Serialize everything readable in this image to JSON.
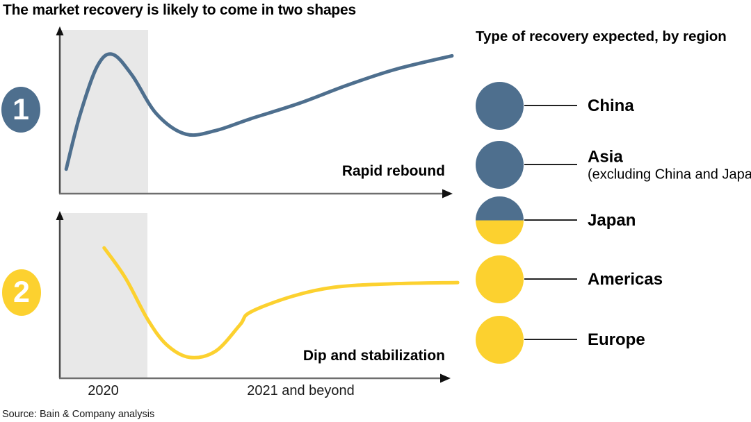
{
  "title": "The market recovery is likely to come in two shapes",
  "source": "Source: Bain & Company analysis",
  "colors": {
    "blue": "#4e6f8e",
    "yellow": "#fcd12f",
    "shaded_band": "#e8e8e8",
    "y_axis": "#4a4a4a",
    "x_axis": "#6e6e6e",
    "arrowhead": "#111111",
    "connector_line": "#222222"
  },
  "x_axis_labels": [
    "2020",
    "2021 and beyond"
  ],
  "chart_data": [
    {
      "type": "line",
      "number": "1",
      "label": "Rapid rebound",
      "series_color": "#4e6f8e",
      "shaded_band_covers": "2020",
      "axes": "unlabeled qualitative axes with arrowheads",
      "curve_points_normalized": [
        [
          0.018,
          0.149
        ],
        [
          0.053,
          0.477
        ],
        [
          0.097,
          0.774
        ],
        [
          0.136,
          0.847
        ],
        [
          0.186,
          0.719
        ],
        [
          0.248,
          0.485
        ],
        [
          0.322,
          0.362
        ],
        [
          0.398,
          0.383
        ],
        [
          0.487,
          0.455
        ],
        [
          0.611,
          0.549
        ],
        [
          0.734,
          0.66
        ],
        [
          0.858,
          0.757
        ],
        [
          1.0,
          0.838
        ]
      ]
    },
    {
      "type": "line",
      "number": "2",
      "label": "Dip and stabilization",
      "series_color": "#fcd12f",
      "shaded_band_covers": "2020",
      "axes": "unlabeled qualitative axes with arrowheads",
      "curve_points_normalized": [
        [
          0.115,
          0.793
        ],
        [
          0.169,
          0.612
        ],
        [
          0.226,
          0.359
        ],
        [
          0.275,
          0.203
        ],
        [
          0.334,
          0.127
        ],
        [
          0.4,
          0.165
        ],
        [
          0.462,
          0.325
        ],
        [
          0.488,
          0.401
        ],
        [
          0.595,
          0.498
        ],
        [
          0.702,
          0.553
        ],
        [
          0.844,
          0.574
        ],
        [
          1.018,
          0.582
        ]
      ]
    }
  ],
  "legend": {
    "heading": "Type of recovery expected, by region",
    "items": [
      {
        "label": "China",
        "sublabel": "",
        "marker": "blue"
      },
      {
        "label": "Asia",
        "sublabel": "(excluding China and Japan)",
        "marker": "blue"
      },
      {
        "label": "Japan",
        "sublabel": "",
        "marker": "split-blue-yellow"
      },
      {
        "label": "Americas",
        "sublabel": "",
        "marker": "yellow"
      },
      {
        "label": "Europe",
        "sublabel": "",
        "marker": "yellow"
      }
    ]
  }
}
